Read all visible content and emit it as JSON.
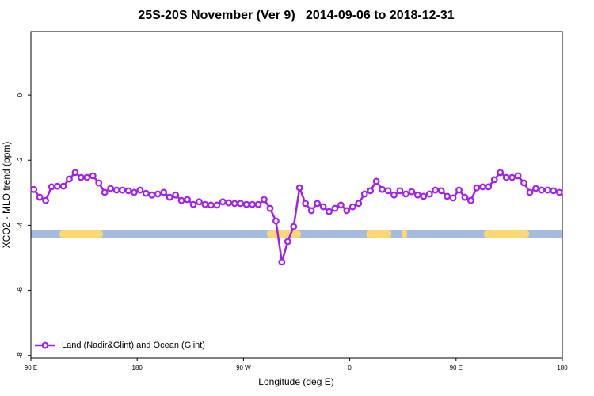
{
  "chart_data": {
    "type": "line",
    "title": "25S-20S November (Ver 9)   2014-09-06 to 2018-12-31",
    "x_label": "Longitude (deg E)",
    "y_label": "XCO2 - MLO trend (ppm)",
    "xlim": [
      90,
      540
    ],
    "ylim": [
      -8.08,
      1.95
    ],
    "xticks": [
      {
        "value": 90,
        "label": "90 E"
      },
      180,
      {
        "value": 270,
        "label": "90 W"
      },
      {
        "value": 360,
        "label": "0"
      },
      {
        "value": 450,
        "label": "90 E"
      },
      {
        "value": 540,
        "label": "180"
      }
    ],
    "yticks": [
      0,
      -2,
      -4,
      -6,
      -8
    ],
    "legend": "bottom left",
    "x": [
      92.5,
      97.5,
      102.5,
      107.5,
      112.5,
      117.5,
      122.5,
      127.5,
      132.5,
      137.5,
      142.5,
      147.5,
      152.5,
      157.5,
      162.5,
      167.5,
      172.5,
      177.5,
      182.5,
      187.5,
      192.5,
      197.5,
      202.5,
      207.5,
      212.5,
      217.5,
      222.5,
      227.5,
      232.5,
      237.5,
      242.5,
      247.5,
      252.5,
      257.5,
      262.5,
      267.5,
      272.5,
      277.5,
      282.5,
      287.5,
      292.5,
      297.5,
      302.5,
      307.5,
      312.5,
      317.5,
      322.5,
      327.5,
      332.5,
      337.5,
      342.5,
      347.5,
      352.5,
      357.5,
      362.5,
      367.5,
      372.5,
      377.5,
      382.5,
      387.5,
      392.5,
      397.5,
      402.5,
      407.5,
      412.5,
      417.5,
      422.5,
      427.5,
      432.5,
      437.5,
      442.5,
      447.5,
      452.5,
      457.5,
      462.5,
      467.5,
      472.5,
      477.5,
      482.5,
      487.5,
      492.5,
      497.5,
      502.5,
      507.5,
      512.5,
      517.5,
      522.5,
      527.5,
      532.5,
      537.5
    ],
    "series": [
      {
        "name": "Land (Nadir&Glint) and Ocean (Glint)",
        "color": "#a020f0",
        "values": [
          -2.9,
          -3.14,
          -3.24,
          -2.82,
          -2.8,
          -2.8,
          -2.58,
          -2.38,
          -2.53,
          -2.53,
          -2.48,
          -2.7,
          -2.99,
          -2.87,
          -2.92,
          -2.92,
          -2.94,
          -2.99,
          -2.92,
          -3.02,
          -3.07,
          -3.04,
          -2.99,
          -3.14,
          -3.07,
          -3.24,
          -3.21,
          -3.36,
          -3.28,
          -3.36,
          -3.38,
          -3.38,
          -3.28,
          -3.31,
          -3.33,
          -3.33,
          -3.36,
          -3.36,
          -3.36,
          -3.21,
          -3.48,
          -3.87,
          -5.13,
          -4.5,
          -4.04,
          -2.85,
          -3.33,
          -3.55,
          -3.33,
          -3.43,
          -3.58,
          -3.48,
          -3.38,
          -3.55,
          -3.43,
          -3.33,
          -3.04,
          -2.94,
          -2.65,
          -2.9,
          -2.94,
          -3.07,
          -2.94,
          -3.04,
          -2.97,
          -3.07,
          -3.11,
          -3.04,
          -2.92,
          -2.94,
          -3.11,
          -3.16,
          -2.92,
          -3.14,
          -3.24,
          -2.85,
          -2.82,
          -2.82,
          -2.6,
          -2.38,
          -2.53,
          -2.53,
          -2.48,
          -2.7,
          -2.99,
          -2.87,
          -2.92,
          -2.92,
          -2.94,
          -2.99
        ]
      }
    ]
  }
}
